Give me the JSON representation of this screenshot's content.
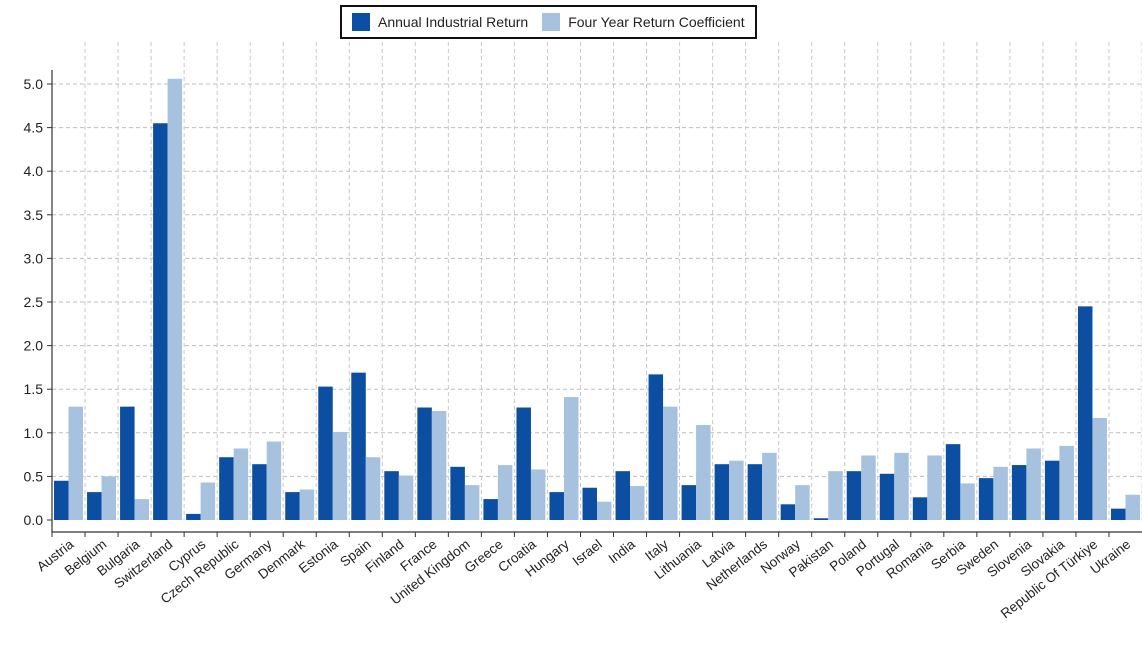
{
  "chart_data": {
    "type": "bar",
    "categories": [
      "Austria",
      "Belgium",
      "Bulgaria",
      "Switzerland",
      "Cyprus",
      "Czech Republic",
      "Germany",
      "Denmark",
      "Estonia",
      "Spain",
      "Finland",
      "France",
      "United Kingdom",
      "Greece",
      "Croatia",
      "Hungary",
      "Israel",
      "India",
      "Italy",
      "Lithuania",
      "Latvia",
      "Netherlands",
      "Norway",
      "Pakistan",
      "Poland",
      "Portugal",
      "Romania",
      "Serbia",
      "Sweden",
      "Slovenia",
      "Slovakia",
      "Republic Of Türkiye",
      "Ukraine"
    ],
    "series": [
      {
        "name": "Annual Industrial Return",
        "color": "#0b4ea2",
        "values": [
          0.45,
          0.32,
          1.3,
          4.55,
          0.07,
          0.72,
          0.64,
          0.32,
          1.53,
          1.69,
          0.56,
          1.29,
          0.61,
          0.24,
          1.29,
          0.32,
          0.37,
          0.56,
          1.67,
          0.4,
          0.64,
          0.64,
          0.18,
          0.02,
          0.56,
          0.53,
          0.26,
          0.87,
          0.48,
          0.63,
          0.68,
          2.45,
          0.13
        ]
      },
      {
        "name": "Four Year Return Coefficient",
        "color": "#a6c2df",
        "values": [
          1.3,
          0.5,
          0.24,
          5.06,
          0.43,
          0.82,
          0.9,
          0.35,
          1.01,
          0.72,
          0.51,
          1.25,
          0.4,
          0.63,
          0.58,
          1.41,
          0.21,
          0.39,
          1.3,
          1.09,
          0.68,
          0.77,
          0.4,
          0.56,
          0.74,
          0.77,
          0.74,
          0.42,
          0.61,
          0.82,
          0.85,
          1.17,
          0.29
        ]
      }
    ],
    "title": "",
    "xlabel": "",
    "ylabel": "",
    "ylim": [
      0,
      5.3
    ],
    "yticks": [
      "0.0",
      "0.5",
      "1.0",
      "1.5",
      "2.0",
      "2.5",
      "3.0",
      "3.5",
      "4.0",
      "4.5",
      "5.0"
    ],
    "grid": true,
    "legend_position": "top-center"
  }
}
